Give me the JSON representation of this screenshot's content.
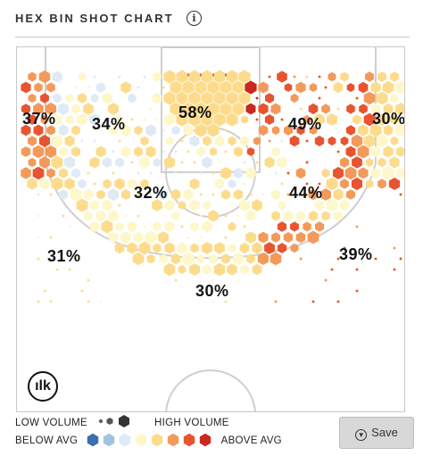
{
  "header": {
    "title": "HEX BIN SHOT CHART",
    "info_icon": "info-icon"
  },
  "chart_data": {
    "type": "heatmap",
    "title": "HEX BIN SHOT CHART",
    "zones": [
      {
        "zone": "left corner 3",
        "fg_pct": "37%"
      },
      {
        "zone": "left wing mid-range",
        "fg_pct": "34%"
      },
      {
        "zone": "restricted area",
        "fg_pct": "58%"
      },
      {
        "zone": "right wing mid-range",
        "fg_pct": "49%"
      },
      {
        "zone": "right corner 3",
        "fg_pct": "30%"
      },
      {
        "zone": "left elbow",
        "fg_pct": "32%"
      },
      {
        "zone": "right elbow",
        "fg_pct": "44%"
      },
      {
        "zone": "left wing 3",
        "fg_pct": "31%"
      },
      {
        "zone": "right wing 3",
        "fg_pct": "39%"
      },
      {
        "zone": "top of key 3",
        "fg_pct": "30%"
      }
    ],
    "volume_scale": [
      "low",
      "medium",
      "high"
    ],
    "efficiency_scale": [
      "#3a6fb0",
      "#9fc3e3",
      "#dfeaf4",
      "#fdf7c9",
      "#fcdc8c",
      "#f39a5b",
      "#e8542f",
      "#c8281e"
    ]
  },
  "legend": {
    "low_volume": "LOW VOLUME",
    "high_volume": "HIGH VOLUME",
    "below_avg": "BELOW AVG",
    "above_avg": "ABOVE AVG",
    "volume_colors": [
      "#555555",
      "#444444",
      "#333333"
    ]
  },
  "save_button": {
    "label": "Save",
    "icon": "download-icon"
  },
  "logo": {
    "text": "ılk"
  }
}
